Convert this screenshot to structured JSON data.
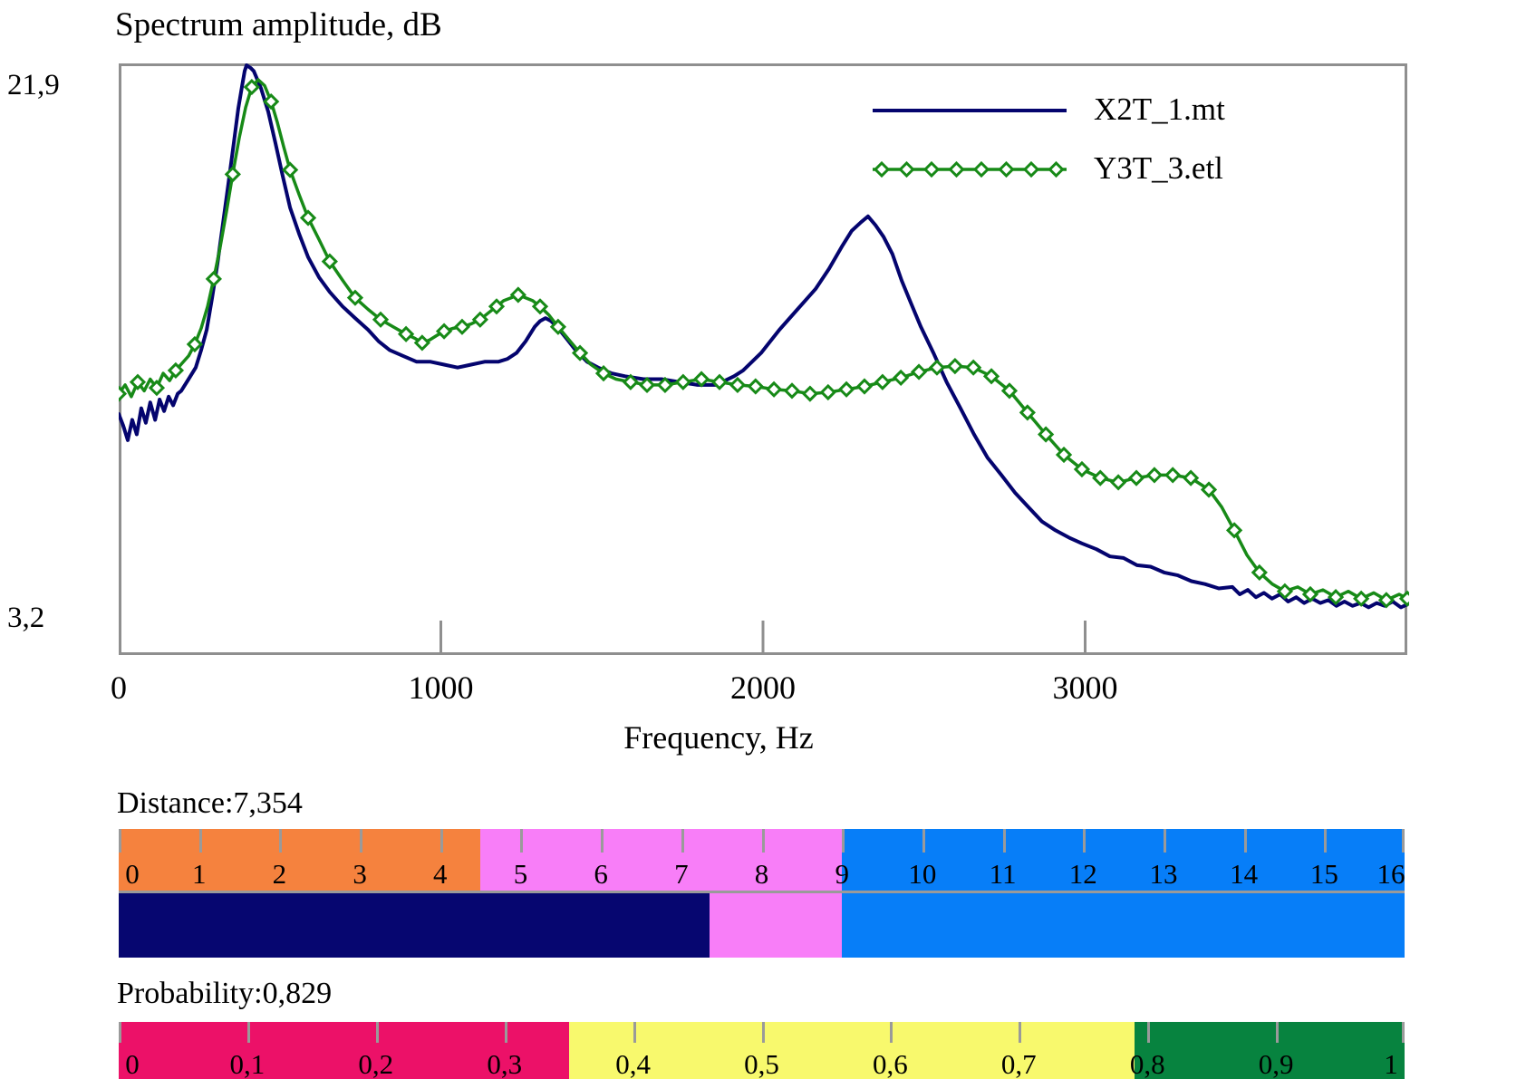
{
  "chart_data": {
    "type": "line",
    "title": "Spectrum amplitude, dB",
    "xlabel": "Frequency, Hz",
    "ylabel": "Spectrum amplitude, dB",
    "xlim": [
      0,
      4000
    ],
    "x_ticks": [
      0,
      1000,
      2000,
      3000
    ],
    "x_tick_labels": [
      "0",
      "1000",
      "2000",
      "3000"
    ],
    "ylim_labels": {
      "max": "21,9",
      "min": "3,2"
    },
    "y_anchors": {
      "max": 21.9,
      "min": 3.2
    },
    "grid": false,
    "legend_position": "top-right",
    "series": [
      {
        "name": "X2T_1.mt",
        "color": "#04046e",
        "marker": "none",
        "points": [
          [
            0,
            9.9
          ],
          [
            14,
            9.5
          ],
          [
            28,
            9.0
          ],
          [
            42,
            9.7
          ],
          [
            56,
            9.2
          ],
          [
            70,
            10.1
          ],
          [
            84,
            9.6
          ],
          [
            98,
            10.3
          ],
          [
            113,
            9.7
          ],
          [
            127,
            10.4
          ],
          [
            141,
            10.0
          ],
          [
            155,
            10.5
          ],
          [
            169,
            10.2
          ],
          [
            183,
            10.6
          ],
          [
            194,
            10.7
          ],
          [
            217,
            11.1
          ],
          [
            239,
            11.5
          ],
          [
            256,
            12.1
          ],
          [
            273,
            12.8
          ],
          [
            290,
            13.9
          ],
          [
            307,
            15.1
          ],
          [
            323,
            16.4
          ],
          [
            340,
            17.8
          ],
          [
            357,
            19.2
          ],
          [
            371,
            20.4
          ],
          [
            383,
            21.2
          ],
          [
            391,
            21.7
          ],
          [
            397,
            21.9
          ],
          [
            410,
            21.8
          ],
          [
            419,
            21.7
          ],
          [
            442,
            21.1
          ],
          [
            464,
            20.3
          ],
          [
            487,
            19.2
          ],
          [
            509,
            18.1
          ],
          [
            532,
            17.0
          ],
          [
            560,
            16.1
          ],
          [
            588,
            15.3
          ],
          [
            622,
            14.6
          ],
          [
            655,
            14.1
          ],
          [
            695,
            13.6
          ],
          [
            734,
            13.2
          ],
          [
            774,
            12.8
          ],
          [
            807,
            12.4
          ],
          [
            841,
            12.1
          ],
          [
            883,
            11.9
          ],
          [
            925,
            11.7
          ],
          [
            968,
            11.7
          ],
          [
            1010,
            11.6
          ],
          [
            1052,
            11.5
          ],
          [
            1094,
            11.6
          ],
          [
            1136,
            11.7
          ],
          [
            1178,
            11.7
          ],
          [
            1207,
            11.8
          ],
          [
            1235,
            12.0
          ],
          [
            1263,
            12.4
          ],
          [
            1291,
            12.9
          ],
          [
            1308,
            13.1
          ],
          [
            1325,
            13.2
          ],
          [
            1342,
            13.1
          ],
          [
            1361,
            12.9
          ],
          [
            1390,
            12.5
          ],
          [
            1418,
            12.1
          ],
          [
            1454,
            11.7
          ],
          [
            1488,
            11.5
          ],
          [
            1530,
            11.3
          ],
          [
            1572,
            11.2
          ],
          [
            1629,
            11.1
          ],
          [
            1685,
            11.1
          ],
          [
            1741,
            11.0
          ],
          [
            1797,
            10.9
          ],
          [
            1854,
            10.9
          ],
          [
            1910,
            11.2
          ],
          [
            1938,
            11.4
          ],
          [
            1994,
            12.0
          ],
          [
            2051,
            12.8
          ],
          [
            2107,
            13.5
          ],
          [
            2163,
            14.2
          ],
          [
            2205,
            14.9
          ],
          [
            2247,
            15.7
          ],
          [
            2275,
            16.2
          ],
          [
            2304,
            16.5
          ],
          [
            2326,
            16.7
          ],
          [
            2349,
            16.4
          ],
          [
            2374,
            16.0
          ],
          [
            2402,
            15.4
          ],
          [
            2430,
            14.5
          ],
          [
            2460,
            13.7
          ],
          [
            2490,
            12.9
          ],
          [
            2529,
            12.0
          ],
          [
            2570,
            11.0
          ],
          [
            2613,
            10.1
          ],
          [
            2655,
            9.2
          ],
          [
            2697,
            8.4
          ],
          [
            2740,
            7.8
          ],
          [
            2782,
            7.2
          ],
          [
            2824,
            6.7
          ],
          [
            2866,
            6.2
          ],
          [
            2908,
            5.9
          ],
          [
            2950,
            5.65
          ],
          [
            2990,
            5.45
          ],
          [
            3035,
            5.25
          ],
          [
            3077,
            5.0
          ],
          [
            3119,
            4.95
          ],
          [
            3161,
            4.7
          ],
          [
            3203,
            4.65
          ],
          [
            3245,
            4.45
          ],
          [
            3288,
            4.35
          ],
          [
            3330,
            4.15
          ],
          [
            3372,
            4.05
          ],
          [
            3415,
            3.9
          ],
          [
            3457,
            3.95
          ],
          [
            3480,
            3.7
          ],
          [
            3505,
            3.85
          ],
          [
            3530,
            3.6
          ],
          [
            3555,
            3.75
          ],
          [
            3580,
            3.55
          ],
          [
            3605,
            3.7
          ],
          [
            3630,
            3.45
          ],
          [
            3655,
            3.6
          ],
          [
            3680,
            3.4
          ],
          [
            3705,
            3.55
          ],
          [
            3730,
            3.4
          ],
          [
            3755,
            3.5
          ],
          [
            3780,
            3.3
          ],
          [
            3805,
            3.45
          ],
          [
            3830,
            3.3
          ],
          [
            3855,
            3.4
          ],
          [
            3880,
            3.25
          ],
          [
            3905,
            3.4
          ],
          [
            3930,
            3.3
          ],
          [
            3955,
            3.45
          ],
          [
            3980,
            3.25
          ],
          [
            4000,
            3.35
          ]
        ]
      },
      {
        "name": "Y3T_3.etl",
        "color": "#178a17",
        "marker": "diamond",
        "marker_fill": "#ffffff",
        "points": [
          [
            0,
            10.6
          ],
          [
            20,
            10.9
          ],
          [
            39,
            10.5
          ],
          [
            59,
            11.0
          ],
          [
            79,
            10.7
          ],
          [
            98,
            11.1
          ],
          [
            118,
            10.8
          ],
          [
            138,
            11.3
          ],
          [
            158,
            11.05
          ],
          [
            177,
            11.4
          ],
          [
            197,
            11.65
          ],
          [
            217,
            11.9
          ],
          [
            236,
            12.3
          ],
          [
            256,
            12.85
          ],
          [
            276,
            13.6
          ],
          [
            295,
            14.55
          ],
          [
            315,
            15.65
          ],
          [
            335,
            16.9
          ],
          [
            354,
            18.15
          ],
          [
            374,
            19.4
          ],
          [
            394,
            20.45
          ],
          [
            413,
            21.15
          ],
          [
            433,
            21.4
          ],
          [
            453,
            21.2
          ],
          [
            473,
            20.65
          ],
          [
            492,
            19.95
          ],
          [
            512,
            19.1
          ],
          [
            532,
            18.3
          ],
          [
            560,
            17.45
          ],
          [
            588,
            16.65
          ],
          [
            622,
            15.9
          ],
          [
            655,
            15.15
          ],
          [
            695,
            14.5
          ],
          [
            734,
            13.9
          ],
          [
            774,
            13.5
          ],
          [
            813,
            13.15
          ],
          [
            852,
            12.9
          ],
          [
            892,
            12.65
          ],
          [
            920,
            12.5
          ],
          [
            942,
            12.35
          ],
          [
            965,
            12.45
          ],
          [
            987,
            12.6
          ],
          [
            1010,
            12.75
          ],
          [
            1038,
            12.85
          ],
          [
            1066,
            12.9
          ],
          [
            1094,
            13.0
          ],
          [
            1122,
            13.15
          ],
          [
            1150,
            13.4
          ],
          [
            1173,
            13.6
          ],
          [
            1195,
            13.8
          ],
          [
            1218,
            13.9
          ],
          [
            1240,
            14.0
          ],
          [
            1263,
            13.9
          ],
          [
            1285,
            13.8
          ],
          [
            1308,
            13.6
          ],
          [
            1336,
            13.3
          ],
          [
            1364,
            12.9
          ],
          [
            1398,
            12.45
          ],
          [
            1432,
            12.0
          ],
          [
            1466,
            11.6
          ],
          [
            1505,
            11.3
          ],
          [
            1544,
            11.1
          ],
          [
            1589,
            11.0
          ],
          [
            1640,
            10.9
          ],
          [
            1696,
            10.9
          ],
          [
            1752,
            11.0
          ],
          [
            1809,
            11.1
          ],
          [
            1865,
            11.0
          ],
          [
            1921,
            10.9
          ],
          [
            1977,
            10.85
          ],
          [
            2034,
            10.75
          ],
          [
            2090,
            10.7
          ],
          [
            2146,
            10.6
          ],
          [
            2202,
            10.65
          ],
          [
            2259,
            10.75
          ],
          [
            2315,
            10.85
          ],
          [
            2371,
            11.0
          ],
          [
            2428,
            11.15
          ],
          [
            2484,
            11.35
          ],
          [
            2540,
            11.5
          ],
          [
            2596,
            11.55
          ],
          [
            2653,
            11.5
          ],
          [
            2709,
            11.2
          ],
          [
            2765,
            10.7
          ],
          [
            2821,
            9.95
          ],
          [
            2878,
            9.2
          ],
          [
            2934,
            8.5
          ],
          [
            2990,
            8.0
          ],
          [
            3047,
            7.7
          ],
          [
            3103,
            7.55
          ],
          [
            3159,
            7.7
          ],
          [
            3215,
            7.8
          ],
          [
            3272,
            7.8
          ],
          [
            3328,
            7.7
          ],
          [
            3384,
            7.3
          ],
          [
            3424,
            6.7
          ],
          [
            3463,
            5.9
          ],
          [
            3502,
            5.05
          ],
          [
            3541,
            4.45
          ],
          [
            3581,
            4.05
          ],
          [
            3620,
            3.8
          ],
          [
            3660,
            3.95
          ],
          [
            3699,
            3.7
          ],
          [
            3738,
            3.85
          ],
          [
            3778,
            3.6
          ],
          [
            3817,
            3.8
          ],
          [
            3857,
            3.55
          ],
          [
            3896,
            3.75
          ],
          [
            3935,
            3.5
          ],
          [
            3975,
            3.7
          ],
          [
            4000,
            3.55
          ]
        ]
      }
    ]
  },
  "gauges": {
    "distance": {
      "name": "Distance:",
      "value": "7,354",
      "value_number": 7.354,
      "min": 0,
      "max": 16,
      "ticks": [
        {
          "v": 0,
          "label": "0"
        },
        {
          "v": 1,
          "label": "1"
        },
        {
          "v": 2,
          "label": "2"
        },
        {
          "v": 3,
          "label": "3"
        },
        {
          "v": 4,
          "label": "4"
        },
        {
          "v": 5,
          "label": "5"
        },
        {
          "v": 6,
          "label": "6"
        },
        {
          "v": 7,
          "label": "7"
        },
        {
          "v": 8,
          "label": "8"
        },
        {
          "v": 9,
          "label": "9"
        },
        {
          "v": 10,
          "label": "10"
        },
        {
          "v": 11,
          "label": "11"
        },
        {
          "v": 12,
          "label": "12"
        },
        {
          "v": 13,
          "label": "13"
        },
        {
          "v": 14,
          "label": "14"
        },
        {
          "v": 15,
          "label": "15"
        },
        {
          "v": 16,
          "label": "16"
        }
      ],
      "scale_segments": [
        {
          "from": 0,
          "to": 4.5,
          "color": "#f5823e"
        },
        {
          "from": 4.5,
          "to": 9,
          "color": "#f87ef8"
        },
        {
          "from": 9,
          "to": 16,
          "color": "#077ef8"
        }
      ],
      "value_segments": [
        {
          "from": 0,
          "to": 7.354,
          "color": "#060670"
        },
        {
          "from": 7.354,
          "to": 9,
          "color": "#f87ef8"
        },
        {
          "from": 9,
          "to": 16,
          "color": "#077ef8"
        }
      ]
    },
    "probability": {
      "name": "Probability:",
      "value": "0,829",
      "value_number": 0.829,
      "min": 0,
      "max": 1,
      "ticks": [
        {
          "v": 0,
          "label": "0"
        },
        {
          "v": 0.1,
          "label": "0,1"
        },
        {
          "v": 0.2,
          "label": "0,2"
        },
        {
          "v": 0.3,
          "label": "0,3"
        },
        {
          "v": 0.4,
          "label": "0,4"
        },
        {
          "v": 0.5,
          "label": "0,5"
        },
        {
          "v": 0.6,
          "label": "0,6"
        },
        {
          "v": 0.7,
          "label": "0,7"
        },
        {
          "v": 0.8,
          "label": "0,8"
        },
        {
          "v": 0.9,
          "label": "0,9"
        },
        {
          "v": 1,
          "label": "1"
        }
      ],
      "scale_segments": [
        {
          "from": 0,
          "to": 0.35,
          "color": "#ec1168"
        },
        {
          "from": 0.35,
          "to": 0.79,
          "color": "#f8f96d"
        },
        {
          "from": 0.79,
          "to": 1,
          "color": "#07833f"
        }
      ]
    }
  },
  "colors": {
    "axis_gray": "#8f8f8f",
    "tick_gray": "#9a9a9a"
  }
}
